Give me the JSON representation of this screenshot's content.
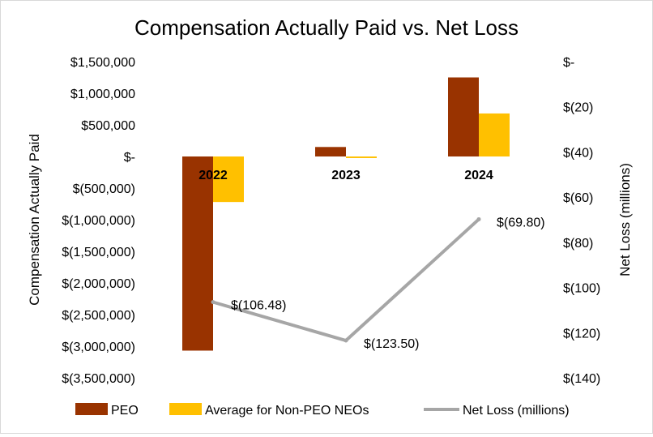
{
  "chart_data": {
    "type": "bar",
    "title": "Compensation Actually Paid vs. Net Loss",
    "categories": [
      "2022",
      "2023",
      "2024"
    ],
    "ylabel": "Compensation Actually Paid",
    "y2label": "Net Loss (millions)",
    "ylim": [
      -3500000,
      1500000
    ],
    "y2lim": [
      -140,
      0
    ],
    "y_ticks": [
      {
        "value": 1500000,
        "label": "$1,500,000"
      },
      {
        "value": 1000000,
        "label": "$1,000,000"
      },
      {
        "value": 500000,
        "label": "$500,000"
      },
      {
        "value": 0,
        "label": "$-"
      },
      {
        "value": -500000,
        "label": "$(500,000)"
      },
      {
        "value": -1000000,
        "label": "$(1,000,000)"
      },
      {
        "value": -1500000,
        "label": "$(1,500,000)"
      },
      {
        "value": -2000000,
        "label": "$(2,000,000)"
      },
      {
        "value": -2500000,
        "label": "$(2,500,000)"
      },
      {
        "value": -3000000,
        "label": "$(3,000,000)"
      },
      {
        "value": -3500000,
        "label": "$(3,500,000)"
      }
    ],
    "y2_ticks": [
      {
        "value": 0,
        "label": "$-"
      },
      {
        "value": -20,
        "label": "$(20)"
      },
      {
        "value": -40,
        "label": "$(40)"
      },
      {
        "value": -60,
        "label": "$(60)"
      },
      {
        "value": -80,
        "label": "$(80)"
      },
      {
        "value": -100,
        "label": "$(100)"
      },
      {
        "value": -120,
        "label": "$(120)"
      },
      {
        "value": -140,
        "label": "$(140)"
      }
    ],
    "series": [
      {
        "name": "PEO",
        "type": "bar",
        "axis": "left",
        "color": "#993300",
        "values": [
          -3070000,
          150000,
          1250000
        ]
      },
      {
        "name": "Average for Non-PEO NEOs",
        "type": "bar",
        "axis": "left",
        "color": "#FFC000",
        "values": [
          -720000,
          -25000,
          680000
        ]
      },
      {
        "name": "Net Loss (millions)",
        "type": "line",
        "axis": "right",
        "color": "#A6A6A6",
        "values": [
          -106.48,
          -123.5,
          -69.8
        ],
        "data_labels": [
          "$(106.48)",
          "$(123.50)",
          "$(69.80)"
        ]
      }
    ],
    "grid": false,
    "legend_position": "bottom"
  }
}
